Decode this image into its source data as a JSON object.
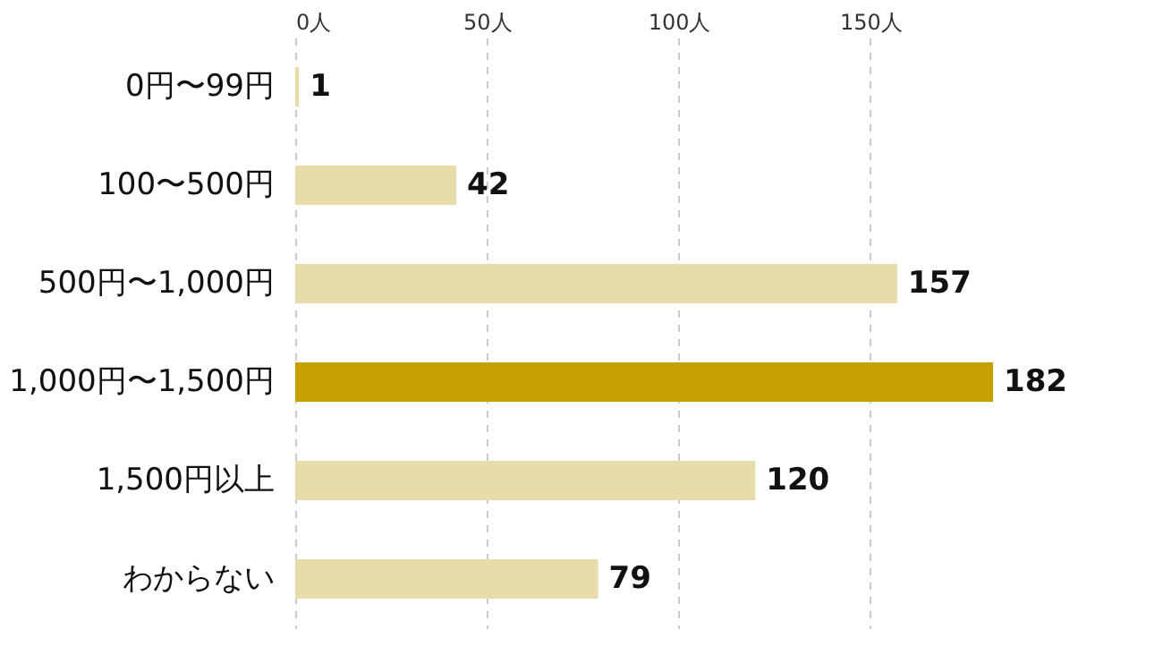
{
  "chart_data": {
    "type": "bar",
    "orientation": "horizontal",
    "categories": [
      "0円〜99円",
      "100〜500円",
      "500円〜1,000円",
      "1,000円〜1,500円",
      "1,500円以上",
      "わからない"
    ],
    "values": [
      1,
      42,
      157,
      182,
      120,
      79
    ],
    "colors": [
      "#e8dcaa",
      "#e8dcaa",
      "#e8dcaa",
      "#c4a000",
      "#e8dcaa",
      "#e8dcaa"
    ],
    "xlim": [
      0,
      182
    ],
    "xticks": [
      {
        "value": 0,
        "label": "0人"
      },
      {
        "value": 50,
        "label": "50人"
      },
      {
        "value": 100,
        "label": "100人"
      },
      {
        "value": 150,
        "label": "150人"
      }
    ],
    "grid": "x",
    "data_labels": true
  }
}
